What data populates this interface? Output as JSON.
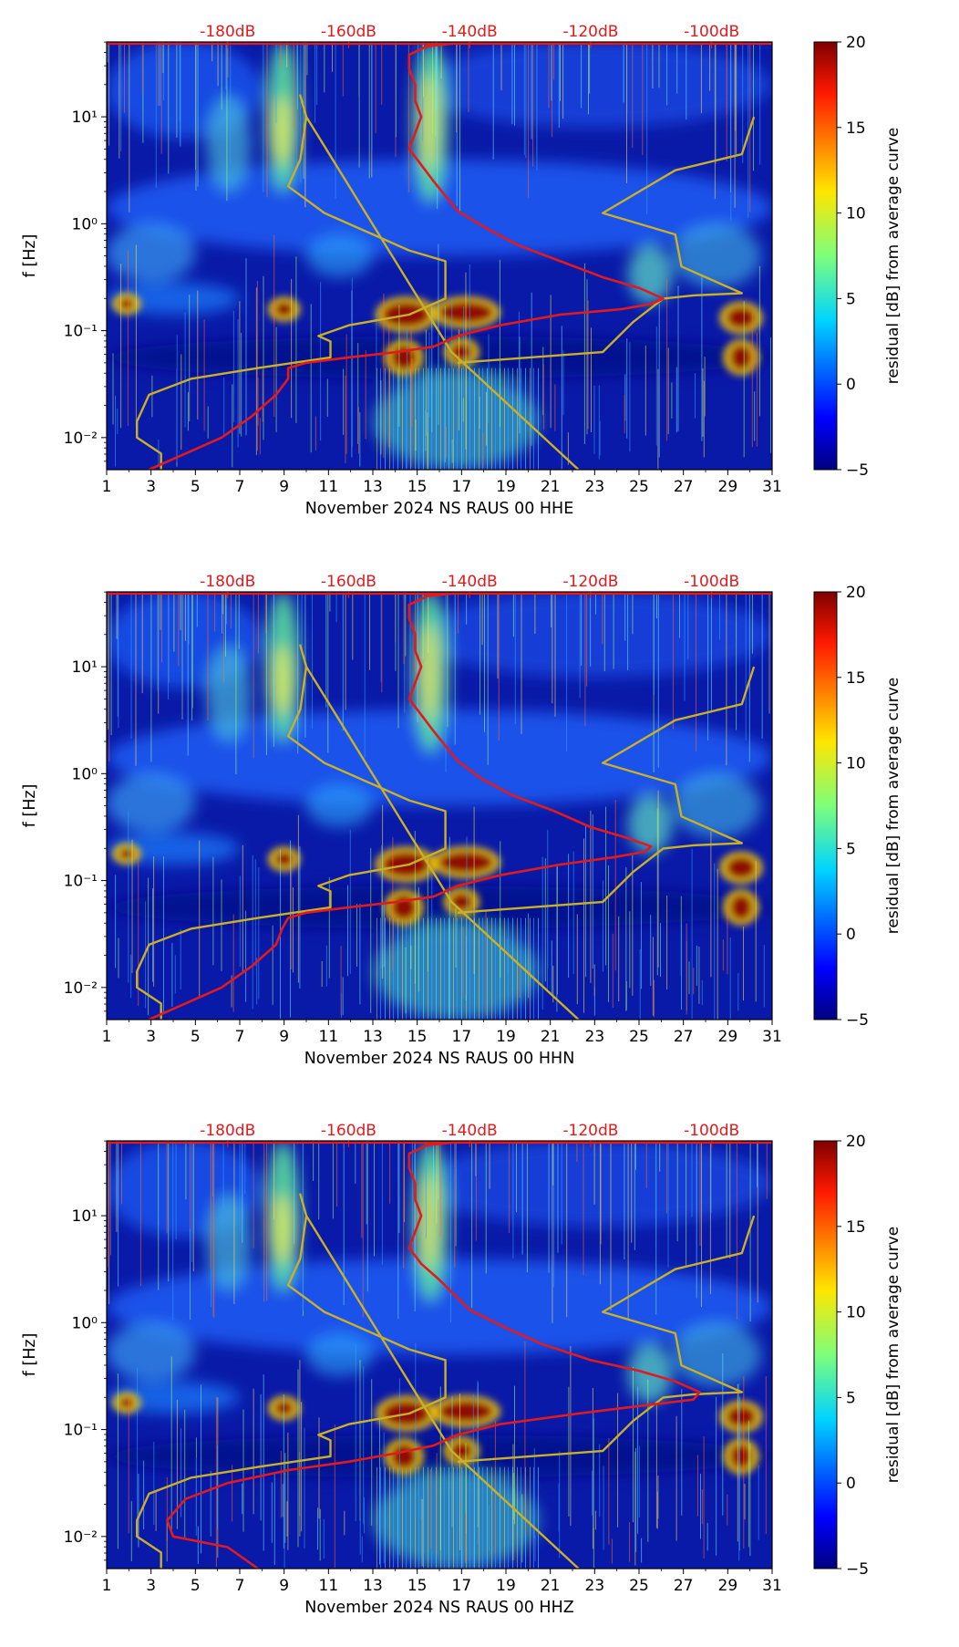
{
  "chart_data": [
    {
      "type": "heatmap",
      "title": "",
      "xlabel": "November 2024 NS RAUS 00 HHE",
      "ylabel": "f [Hz]",
      "x_ticks": [
        "1",
        "3",
        "5",
        "7",
        "9",
        "11",
        "13",
        "15",
        "17",
        "19",
        "21",
        "23",
        "25",
        "27",
        "29",
        "31"
      ],
      "y_ticks": [
        "10⁻²",
        "10⁻¹",
        "10⁰",
        "10¹"
      ],
      "top_ticks": [
        "-180dB",
        "-160dB",
        "-140dB",
        "-120dB",
        "-100dB"
      ],
      "colorbar": {
        "label": "residual [dB] from average curve",
        "ticks": [
          "20",
          "15",
          "10",
          "5",
          "0",
          "−5"
        ],
        "range": [
          -5,
          20
        ]
      },
      "xlim": [
        1,
        31
      ],
      "ylim_log10": [
        -2.3,
        1.7
      ],
      "red_curve": [
        [
          -193,
          -2.3
        ],
        [
          -187,
          -2.15
        ],
        [
          -181,
          -2.0
        ],
        [
          -176,
          -1.8
        ],
        [
          -172,
          -1.6
        ],
        [
          -170,
          -1.45
        ],
        [
          -170,
          -1.35
        ],
        [
          -167,
          -1.3
        ],
        [
          -160,
          -1.25
        ],
        [
          -152,
          -1.2
        ],
        [
          -146,
          -1.15
        ],
        [
          -142,
          -1.05
        ],
        [
          -135,
          -0.95
        ],
        [
          -125,
          -0.85
        ],
        [
          -115,
          -0.8
        ],
        [
          -110,
          -0.75
        ],
        [
          -108,
          -0.7
        ],
        [
          -112,
          -0.6
        ],
        [
          -118,
          -0.5
        ],
        [
          -125,
          -0.35
        ],
        [
          -132,
          -0.2
        ],
        [
          -137,
          -0.05
        ],
        [
          -142,
          0.12
        ],
        [
          -146,
          0.4
        ],
        [
          -148,
          0.55
        ],
        [
          -150,
          0.7
        ],
        [
          -149,
          0.85
        ],
        [
          -148,
          1.0
        ],
        [
          -149,
          1.15
        ],
        [
          -149,
          1.3
        ],
        [
          -150,
          1.45
        ],
        [
          -150,
          1.58
        ],
        [
          -147,
          1.66
        ],
        [
          -140,
          1.7
        ],
        [
          -95,
          1.7
        ]
      ],
      "yellow_curve": [
        [
          -191,
          -2.3
        ],
        [
          -191,
          -2.15
        ],
        [
          -195,
          -2.0
        ],
        [
          -195,
          -1.85
        ],
        [
          -193,
          -1.6
        ],
        [
          -186,
          -1.45
        ],
        [
          -175,
          -1.35
        ],
        [
          -163,
          -1.25
        ],
        [
          -163,
          -1.1
        ],
        [
          -165,
          -1.05
        ],
        [
          -160,
          -0.95
        ],
        [
          -150,
          -0.85
        ],
        [
          -144,
          -0.7
        ],
        [
          -144,
          -0.35
        ],
        [
          -150,
          -0.25
        ],
        [
          -164,
          0.1
        ],
        [
          -170,
          0.35
        ],
        [
          -168,
          0.6
        ],
        [
          -167,
          1.0
        ],
        [
          -168,
          1.2
        ],
        [
          -167,
          1.0
        ],
        [
          -143,
          -1.2
        ],
        [
          -122,
          -2.3
        ]
      ],
      "yellow_curve_2": [
        [
          -142,
          -1.3
        ],
        [
          -118,
          -1.2
        ],
        [
          -113,
          -0.92
        ],
        [
          -108,
          -0.7
        ],
        [
          -103,
          -0.67
        ],
        [
          -95,
          -0.65
        ],
        [
          -105,
          -0.4
        ],
        [
          -106,
          -0.1
        ],
        [
          -118,
          0.1
        ],
        [
          -106,
          0.5
        ],
        [
          -95,
          0.65
        ],
        [
          -93,
          1.0
        ]
      ]
    },
    {
      "type": "heatmap",
      "title": "",
      "xlabel": "November 2024 NS RAUS 00 HHN",
      "ylabel": "f [Hz]",
      "x_ticks": [
        "1",
        "3",
        "5",
        "7",
        "9",
        "11",
        "13",
        "15",
        "17",
        "19",
        "21",
        "23",
        "25",
        "27",
        "29",
        "31"
      ],
      "y_ticks": [
        "10⁻²",
        "10⁻¹",
        "10⁰",
        "10¹"
      ],
      "top_ticks": [
        "-180dB",
        "-160dB",
        "-140dB",
        "-120dB",
        "-100dB"
      ],
      "colorbar": {
        "label": "residual [dB] from average curve",
        "ticks": [
          "20",
          "15",
          "10",
          "5",
          "0",
          "−5"
        ],
        "range": [
          -5,
          20
        ]
      },
      "xlim": [
        1,
        31
      ],
      "ylim_log10": [
        -2.3,
        1.7
      ],
      "red_curve": [
        [
          -193,
          -2.3
        ],
        [
          -187,
          -2.15
        ],
        [
          -181,
          -2.0
        ],
        [
          -176,
          -1.8
        ],
        [
          -172,
          -1.6
        ],
        [
          -171,
          -1.45
        ],
        [
          -170,
          -1.35
        ],
        [
          -167,
          -1.3
        ],
        [
          -160,
          -1.25
        ],
        [
          -152,
          -1.2
        ],
        [
          -146,
          -1.15
        ],
        [
          -142,
          -1.05
        ],
        [
          -135,
          -0.95
        ],
        [
          -125,
          -0.85
        ],
        [
          -116,
          -0.78
        ],
        [
          -111,
          -0.73
        ],
        [
          -110,
          -0.68
        ],
        [
          -114,
          -0.6
        ],
        [
          -120,
          -0.5
        ],
        [
          -126,
          -0.35
        ],
        [
          -133,
          -0.2
        ],
        [
          -138,
          -0.05
        ],
        [
          -142,
          0.12
        ],
        [
          -146,
          0.4
        ],
        [
          -148,
          0.55
        ],
        [
          -150,
          0.7
        ],
        [
          -149,
          0.85
        ],
        [
          -148,
          1.0
        ],
        [
          -149,
          1.15
        ],
        [
          -149,
          1.3
        ],
        [
          -150,
          1.45
        ],
        [
          -150,
          1.58
        ],
        [
          -147,
          1.66
        ],
        [
          -140,
          1.7
        ],
        [
          -95,
          1.7
        ]
      ],
      "yellow_curve": [
        [
          -191,
          -2.3
        ],
        [
          -191,
          -2.15
        ],
        [
          -195,
          -2.0
        ],
        [
          -195,
          -1.85
        ],
        [
          -193,
          -1.6
        ],
        [
          -186,
          -1.45
        ],
        [
          -175,
          -1.35
        ],
        [
          -163,
          -1.25
        ],
        [
          -163,
          -1.1
        ],
        [
          -165,
          -1.05
        ],
        [
          -160,
          -0.95
        ],
        [
          -150,
          -0.85
        ],
        [
          -144,
          -0.7
        ],
        [
          -144,
          -0.35
        ],
        [
          -150,
          -0.25
        ],
        [
          -164,
          0.1
        ],
        [
          -170,
          0.35
        ],
        [
          -168,
          0.6
        ],
        [
          -167,
          1.0
        ],
        [
          -168,
          1.2
        ],
        [
          -167,
          1.0
        ],
        [
          -143,
          -1.2
        ],
        [
          -122,
          -2.3
        ]
      ],
      "yellow_curve_2": [
        [
          -142,
          -1.3
        ],
        [
          -118,
          -1.2
        ],
        [
          -113,
          -0.92
        ],
        [
          -108,
          -0.7
        ],
        [
          -103,
          -0.67
        ],
        [
          -95,
          -0.65
        ],
        [
          -105,
          -0.4
        ],
        [
          -106,
          -0.1
        ],
        [
          -118,
          0.1
        ],
        [
          -106,
          0.5
        ],
        [
          -95,
          0.65
        ],
        [
          -93,
          1.0
        ]
      ]
    },
    {
      "type": "heatmap",
      "title": "",
      "xlabel": "November 2024 NS RAUS 00 HHZ",
      "ylabel": "f [Hz]",
      "x_ticks": [
        "1",
        "3",
        "5",
        "7",
        "9",
        "11",
        "13",
        "15",
        "17",
        "19",
        "21",
        "23",
        "25",
        "27",
        "29",
        "31"
      ],
      "y_ticks": [
        "10⁻²",
        "10⁻¹",
        "10⁰",
        "10¹"
      ],
      "top_ticks": [
        "-180dB",
        "-160dB",
        "-140dB",
        "-120dB",
        "-100dB"
      ],
      "colorbar": {
        "label": "residual [dB] from average curve",
        "ticks": [
          "20",
          "15",
          "10",
          "5",
          "0",
          "−5"
        ],
        "range": [
          -5,
          20
        ]
      },
      "xlim": [
        1,
        31
      ],
      "ylim_log10": [
        -2.3,
        1.7
      ],
      "red_curve": [
        [
          -175,
          -2.3
        ],
        [
          -180,
          -2.1
        ],
        [
          -189,
          -2.0
        ],
        [
          -190,
          -1.85
        ],
        [
          -187,
          -1.65
        ],
        [
          -180,
          -1.5
        ],
        [
          -170,
          -1.38
        ],
        [
          -160,
          -1.3
        ],
        [
          -152,
          -1.22
        ],
        [
          -146,
          -1.15
        ],
        [
          -142,
          -1.05
        ],
        [
          -135,
          -0.95
        ],
        [
          -122,
          -0.85
        ],
        [
          -112,
          -0.78
        ],
        [
          -103,
          -0.72
        ],
        [
          -102,
          -0.65
        ],
        [
          -106,
          -0.55
        ],
        [
          -112,
          -0.45
        ],
        [
          -120,
          -0.35
        ],
        [
          -128,
          -0.2
        ],
        [
          -134,
          -0.05
        ],
        [
          -140,
          0.12
        ],
        [
          -145,
          0.4
        ],
        [
          -148,
          0.55
        ],
        [
          -150,
          0.7
        ],
        [
          -149,
          0.85
        ],
        [
          -148,
          1.0
        ],
        [
          -149,
          1.15
        ],
        [
          -149,
          1.3
        ],
        [
          -150,
          1.45
        ],
        [
          -150,
          1.58
        ],
        [
          -147,
          1.66
        ],
        [
          -140,
          1.7
        ],
        [
          -95,
          1.7
        ]
      ],
      "yellow_curve": [
        [
          -191,
          -2.3
        ],
        [
          -191,
          -2.15
        ],
        [
          -195,
          -2.0
        ],
        [
          -195,
          -1.85
        ],
        [
          -193,
          -1.6
        ],
        [
          -186,
          -1.45
        ],
        [
          -175,
          -1.35
        ],
        [
          -163,
          -1.25
        ],
        [
          -163,
          -1.1
        ],
        [
          -165,
          -1.05
        ],
        [
          -160,
          -0.95
        ],
        [
          -150,
          -0.85
        ],
        [
          -144,
          -0.7
        ],
        [
          -144,
          -0.35
        ],
        [
          -150,
          -0.25
        ],
        [
          -164,
          0.1
        ],
        [
          -170,
          0.35
        ],
        [
          -168,
          0.6
        ],
        [
          -167,
          1.0
        ],
        [
          -168,
          1.2
        ],
        [
          -167,
          1.0
        ],
        [
          -143,
          -1.2
        ],
        [
          -122,
          -2.3
        ]
      ],
      "yellow_curve_2": [
        [
          -142,
          -1.3
        ],
        [
          -118,
          -1.2
        ],
        [
          -113,
          -0.92
        ],
        [
          -108,
          -0.7
        ],
        [
          -103,
          -0.67
        ],
        [
          -95,
          -0.65
        ],
        [
          -105,
          -0.4
        ],
        [
          -106,
          -0.1
        ],
        [
          -118,
          0.1
        ],
        [
          -106,
          0.5
        ],
        [
          -95,
          0.65
        ],
        [
          -93,
          1.0
        ]
      ]
    }
  ],
  "colors": {
    "red_curve": "#e31a1c",
    "yellow_curve": "#c8b028",
    "top_tick_text": "#e31a1c",
    "axis": "#000000",
    "background_low": "#0a1a9c"
  }
}
